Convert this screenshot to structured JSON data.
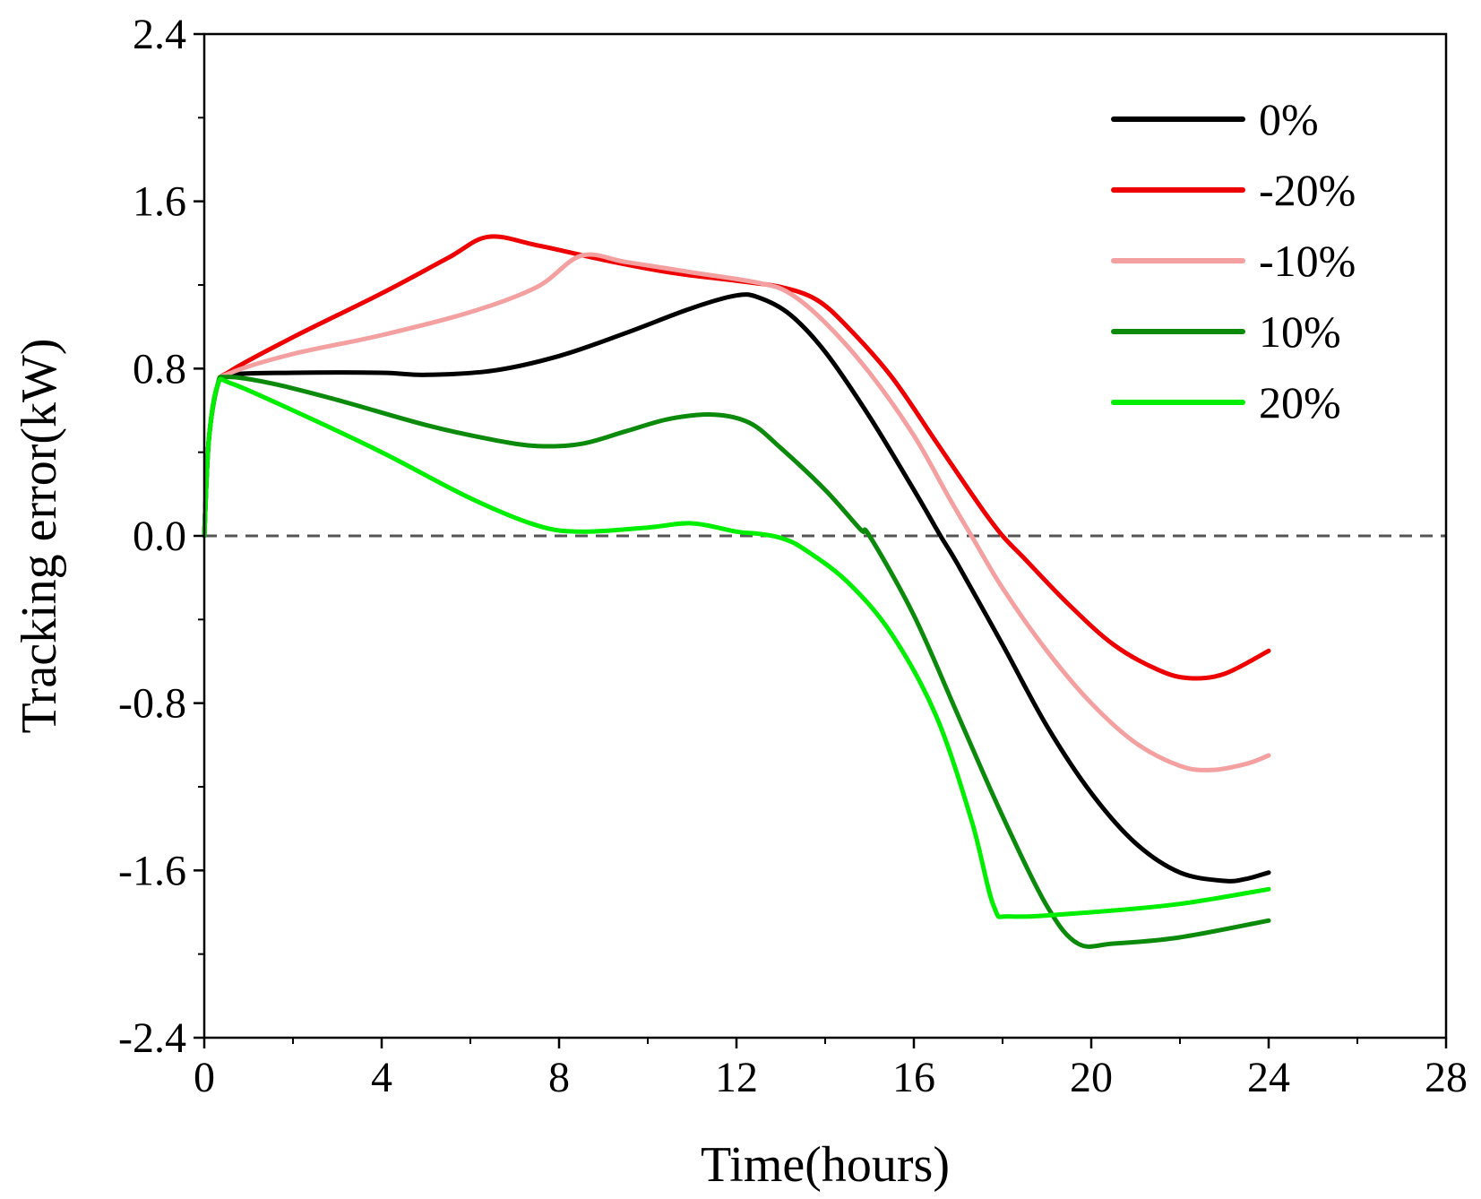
{
  "chart_data": {
    "type": "line",
    "title": "",
    "xlabel": "Time(hours)",
    "ylabel": "Tracking error(kW)",
    "xlim": [
      0,
      28
    ],
    "ylim": [
      -2.4,
      2.4
    ],
    "xticks": [
      0,
      4,
      8,
      12,
      16,
      20,
      24,
      28
    ],
    "xtick_labels": [
      "0",
      "4",
      "8",
      "12",
      "16",
      "20",
      "24",
      "28"
    ],
    "yticks": [
      -2.4,
      -1.6,
      -0.8,
      0.0,
      0.8,
      1.6,
      2.4
    ],
    "ytick_labels": [
      "-2.4",
      "-1.6",
      "-0.8",
      "0.0",
      "0.8",
      "1.6",
      "2.4"
    ],
    "grid": false,
    "legend_position": "top-right",
    "reference_line": {
      "y": 0,
      "style": "dashed",
      "color": "#555555"
    },
    "series": [
      {
        "name": "0%",
        "color": "#000000",
        "points": [
          [
            0,
            0
          ],
          [
            0.1,
            0.45
          ],
          [
            0.3,
            0.72
          ],
          [
            0.6,
            0.77
          ],
          [
            2,
            0.78
          ],
          [
            4,
            0.78
          ],
          [
            5,
            0.77
          ],
          [
            6.5,
            0.79
          ],
          [
            8,
            0.86
          ],
          [
            9.5,
            0.97
          ],
          [
            11,
            1.09
          ],
          [
            12,
            1.15
          ],
          [
            12.5,
            1.14
          ],
          [
            13.2,
            1.06
          ],
          [
            14,
            0.88
          ],
          [
            15,
            0.57
          ],
          [
            16,
            0.22
          ],
          [
            16.6,
            0.0
          ],
          [
            17,
            -0.14
          ],
          [
            18,
            -0.52
          ],
          [
            19,
            -0.91
          ],
          [
            20,
            -1.23
          ],
          [
            21,
            -1.47
          ],
          [
            22,
            -1.61
          ],
          [
            23,
            -1.65
          ],
          [
            23.5,
            -1.64
          ],
          [
            24,
            -1.61
          ]
        ]
      },
      {
        "name": "-20%",
        "color": "#ee0000",
        "points": [
          [
            0,
            0
          ],
          [
            0.1,
            0.45
          ],
          [
            0.3,
            0.72
          ],
          [
            0.6,
            0.79
          ],
          [
            2,
            0.95
          ],
          [
            4,
            1.16
          ],
          [
            5.5,
            1.33
          ],
          [
            6.4,
            1.43
          ],
          [
            7.5,
            1.39
          ],
          [
            9,
            1.32
          ],
          [
            10.5,
            1.26
          ],
          [
            12,
            1.22
          ],
          [
            13,
            1.19
          ],
          [
            13.8,
            1.13
          ],
          [
            14.5,
            1.0
          ],
          [
            15.5,
            0.76
          ],
          [
            16.5,
            0.45
          ],
          [
            17.5,
            0.14
          ],
          [
            18,
            0.0
          ],
          [
            18.5,
            -0.11
          ],
          [
            19.5,
            -0.33
          ],
          [
            20.5,
            -0.52
          ],
          [
            21.5,
            -0.64
          ],
          [
            22.2,
            -0.68
          ],
          [
            23,
            -0.66
          ],
          [
            24,
            -0.55
          ]
        ]
      },
      {
        "name": "-10%",
        "color": "#f4a0a0",
        "points": [
          [
            0,
            0
          ],
          [
            0.1,
            0.45
          ],
          [
            0.3,
            0.72
          ],
          [
            0.6,
            0.78
          ],
          [
            2,
            0.87
          ],
          [
            4,
            0.96
          ],
          [
            6,
            1.07
          ],
          [
            7.5,
            1.19
          ],
          [
            8.5,
            1.34
          ],
          [
            9.5,
            1.31
          ],
          [
            11,
            1.26
          ],
          [
            12.5,
            1.21
          ],
          [
            13.2,
            1.16
          ],
          [
            14,
            1.02
          ],
          [
            15,
            0.78
          ],
          [
            16,
            0.48
          ],
          [
            16.8,
            0.18
          ],
          [
            17.3,
            0.0
          ],
          [
            18,
            -0.25
          ],
          [
            19,
            -0.55
          ],
          [
            20,
            -0.8
          ],
          [
            21,
            -0.99
          ],
          [
            22,
            -1.1
          ],
          [
            22.7,
            -1.12
          ],
          [
            23.5,
            -1.09
          ],
          [
            24,
            -1.05
          ]
        ]
      },
      {
        "name": "10%",
        "color": "#0b8a0b",
        "points": [
          [
            0,
            0
          ],
          [
            0.1,
            0.45
          ],
          [
            0.3,
            0.72
          ],
          [
            0.5,
            0.76
          ],
          [
            1.5,
            0.73
          ],
          [
            3,
            0.65
          ],
          [
            5,
            0.53
          ],
          [
            6.5,
            0.46
          ],
          [
            7.5,
            0.43
          ],
          [
            8.5,
            0.44
          ],
          [
            9.5,
            0.5
          ],
          [
            10.5,
            0.56
          ],
          [
            11.5,
            0.58
          ],
          [
            12.3,
            0.54
          ],
          [
            13,
            0.42
          ],
          [
            14,
            0.22
          ],
          [
            14.8,
            0.03
          ],
          [
            15,
            0.0
          ],
          [
            16,
            -0.38
          ],
          [
            17,
            -0.86
          ],
          [
            18,
            -1.34
          ],
          [
            19,
            -1.77
          ],
          [
            19.7,
            -1.95
          ],
          [
            20.5,
            -1.95
          ],
          [
            22,
            -1.92
          ],
          [
            24,
            -1.84
          ]
        ]
      },
      {
        "name": "20%",
        "color": "#00ee00",
        "points": [
          [
            0,
            0
          ],
          [
            0.1,
            0.45
          ],
          [
            0.3,
            0.72
          ],
          [
            0.6,
            0.73
          ],
          [
            2,
            0.6
          ],
          [
            4,
            0.4
          ],
          [
            6,
            0.18
          ],
          [
            7.5,
            0.05
          ],
          [
            8.5,
            0.02
          ],
          [
            10,
            0.04
          ],
          [
            11,
            0.06
          ],
          [
            12,
            0.02
          ],
          [
            12.5,
            0.01
          ],
          [
            13,
            -0.01
          ],
          [
            13.5,
            -0.06
          ],
          [
            14.5,
            -0.22
          ],
          [
            15.5,
            -0.47
          ],
          [
            16.5,
            -0.86
          ],
          [
            17.3,
            -1.36
          ],
          [
            17.8,
            -1.77
          ],
          [
            18.2,
            -1.82
          ],
          [
            20,
            -1.8
          ],
          [
            22,
            -1.76
          ],
          [
            24,
            -1.69
          ]
        ]
      }
    ]
  }
}
